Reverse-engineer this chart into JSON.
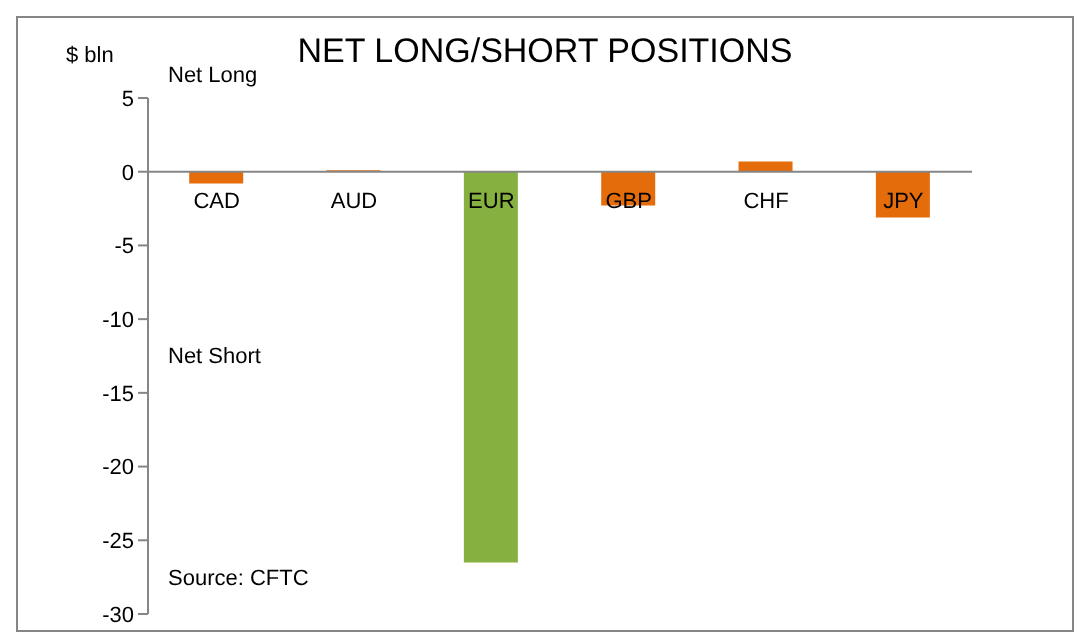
{
  "chart_data": {
    "type": "bar",
    "title": "NET LONG/SHORT POSITIONS",
    "ylabel": "$ bln",
    "categories": [
      "CAD",
      "AUD",
      "EUR",
      "GBP",
      "CHF",
      "JPY"
    ],
    "values": [
      -0.8,
      0.1,
      -26.5,
      -2.3,
      0.7,
      -3.1
    ],
    "colors": [
      "#e46c0a",
      "#e46c0a",
      "#86b03f",
      "#e46c0a",
      "#e46c0a",
      "#e46c0a"
    ],
    "ylim": [
      -30,
      5
    ],
    "yticks": [
      -30,
      -25,
      -20,
      -15,
      -10,
      -5,
      0,
      5
    ],
    "annotations": [
      "Net Long",
      "Net Short",
      "Source: CFTC"
    ]
  }
}
